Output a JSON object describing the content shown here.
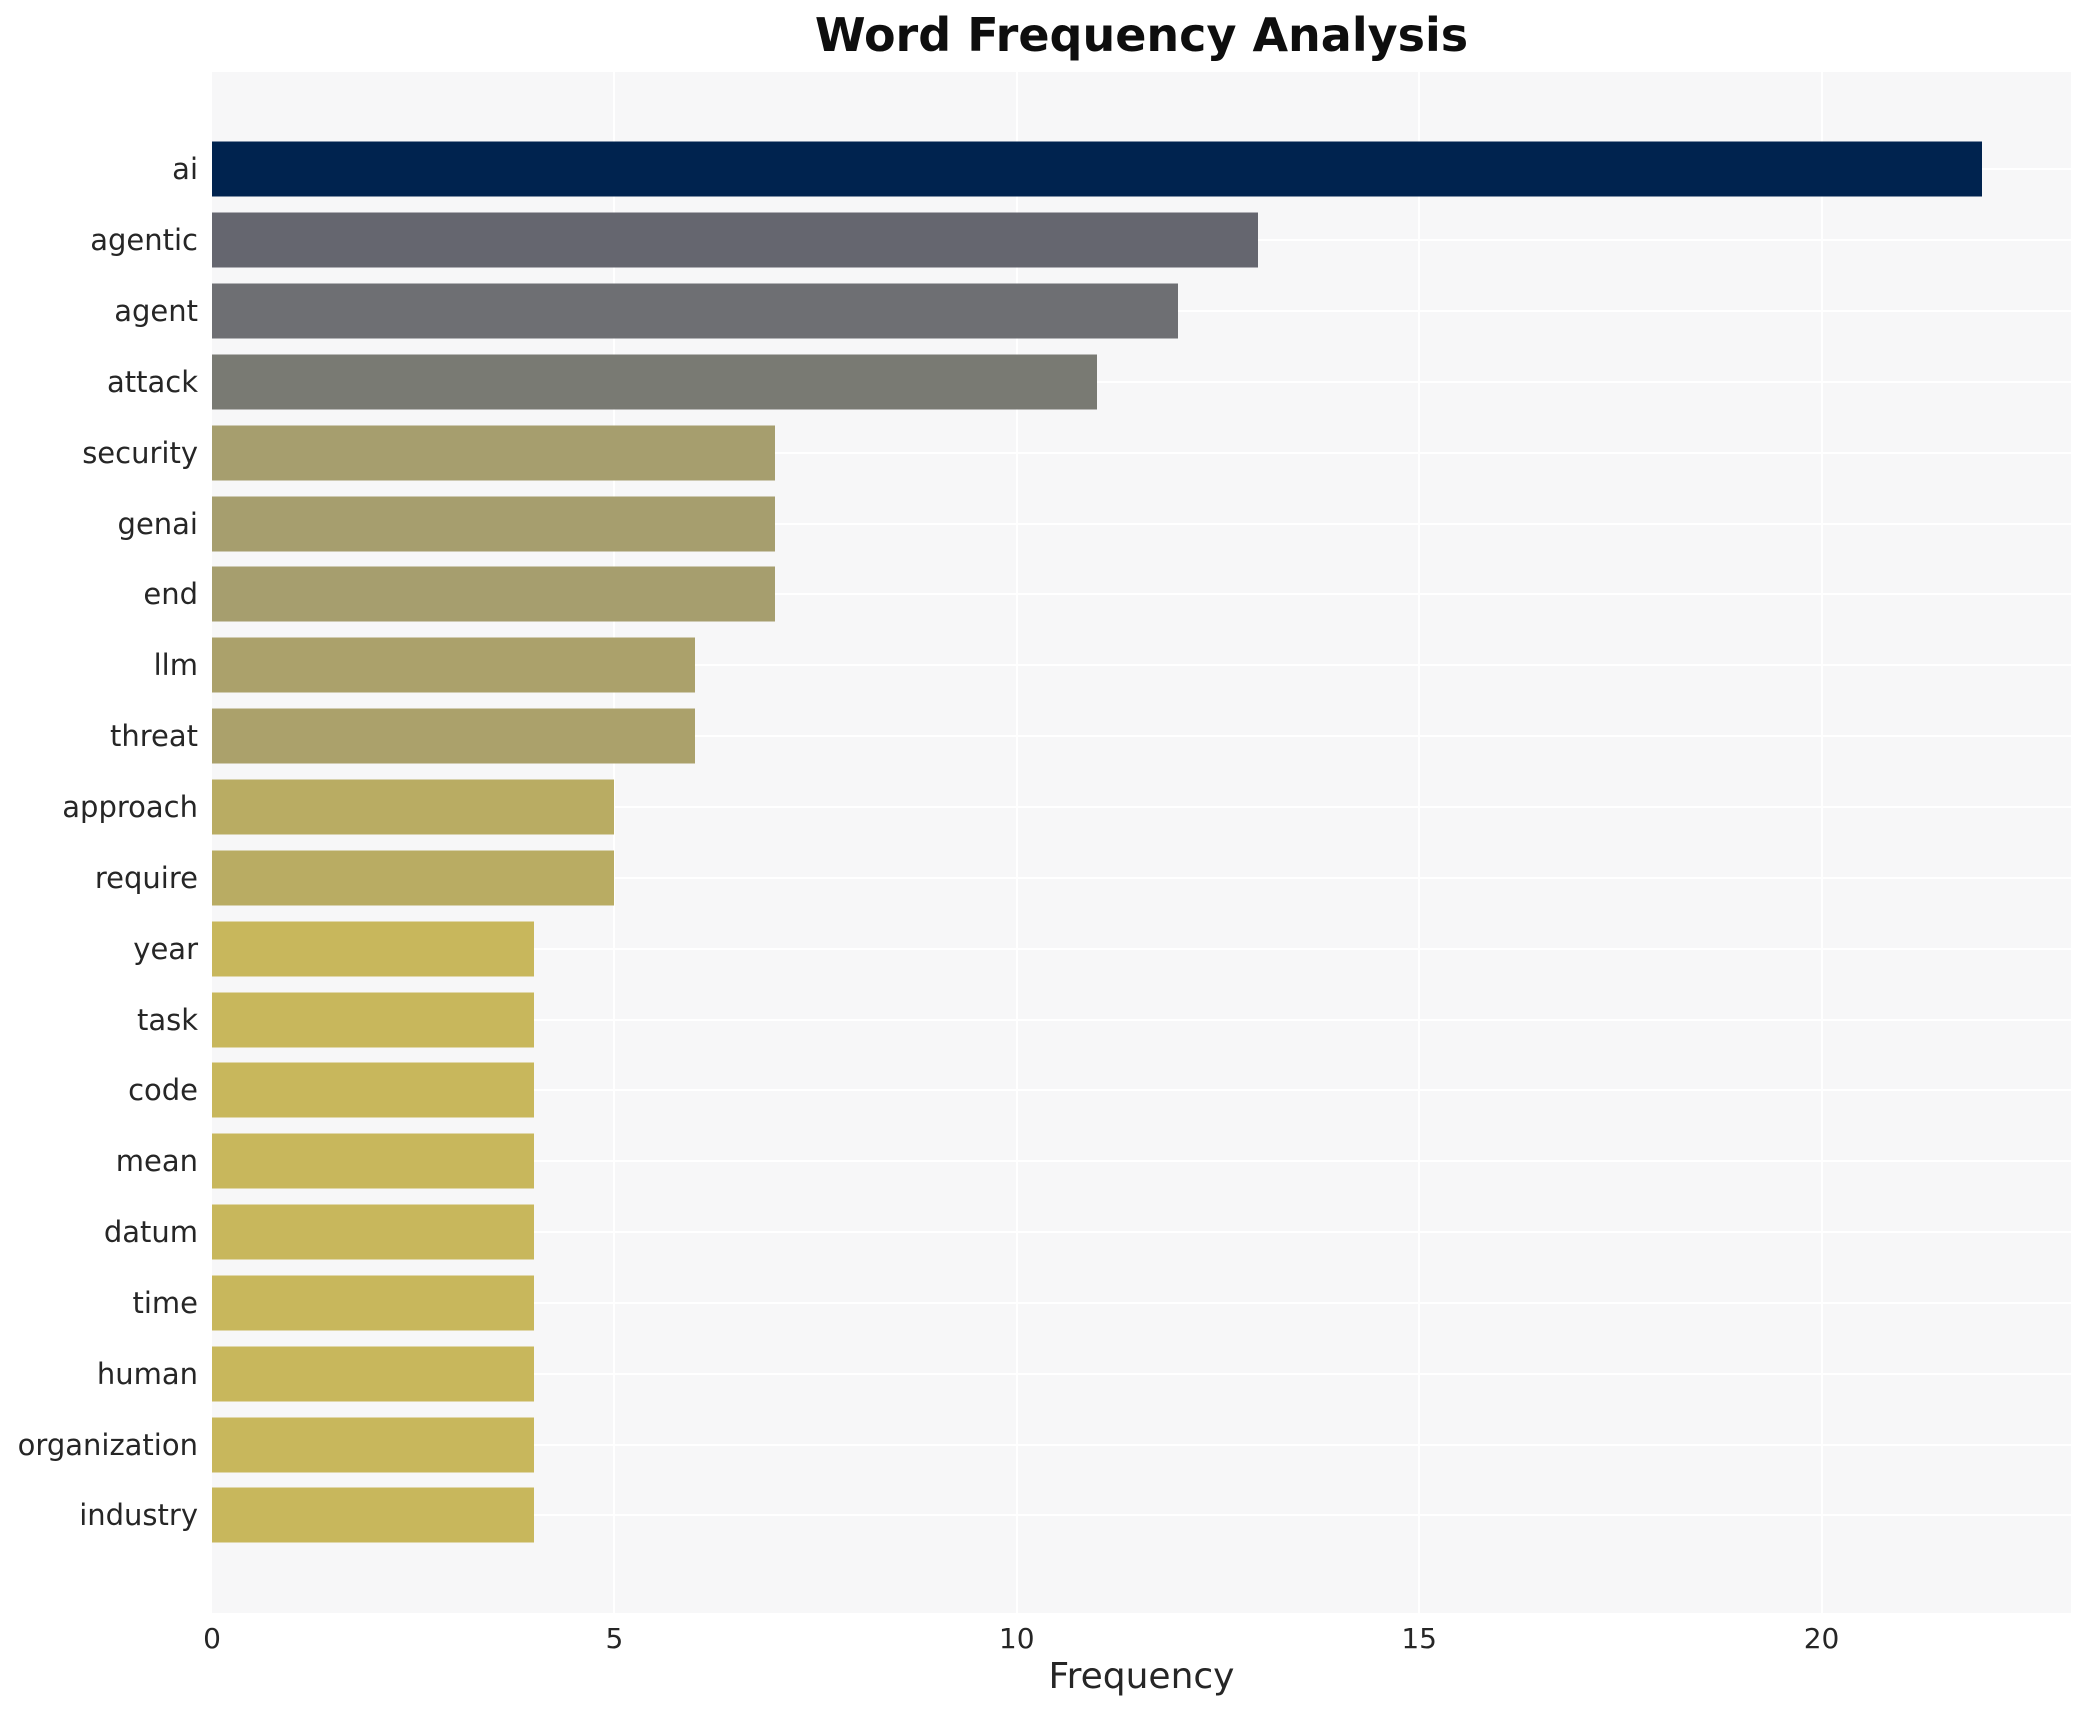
{
  "title": "Word Frequency Analysis",
  "xlabel": "Frequency",
  "chart_data": {
    "type": "bar",
    "orientation": "horizontal",
    "title": "Word Frequency Analysis",
    "xlabel": "Frequency",
    "ylabel": "",
    "xlim": [
      0,
      23.1
    ],
    "xticks": [
      0,
      5,
      10,
      15,
      20
    ],
    "grid": true,
    "legend": "none",
    "plot_background": "#f7f7f8",
    "grid_color": "#ffffff",
    "categories": [
      "ai",
      "agentic",
      "agent",
      "attack",
      "security",
      "genai",
      "end",
      "llm",
      "threat",
      "approach",
      "require",
      "year",
      "task",
      "code",
      "mean",
      "datum",
      "time",
      "human",
      "organization",
      "industry"
    ],
    "values": [
      22,
      13,
      12,
      11,
      7,
      7,
      7,
      6,
      6,
      5,
      5,
      4,
      4,
      4,
      4,
      4,
      4,
      4,
      4,
      4
    ],
    "bar_colors": [
      "#00234f",
      "#65666f",
      "#6e6f73",
      "#797a73",
      "#a69e6e",
      "#a69e6e",
      "#a69e6e",
      "#aba16b",
      "#aba16b",
      "#b9ac63",
      "#b9ac63",
      "#c8b75c",
      "#c8b75c",
      "#c8b75c",
      "#c8b75c",
      "#c8b75c",
      "#c8b75c",
      "#c8b75c",
      "#c8b75c",
      "#c8b75c"
    ]
  }
}
